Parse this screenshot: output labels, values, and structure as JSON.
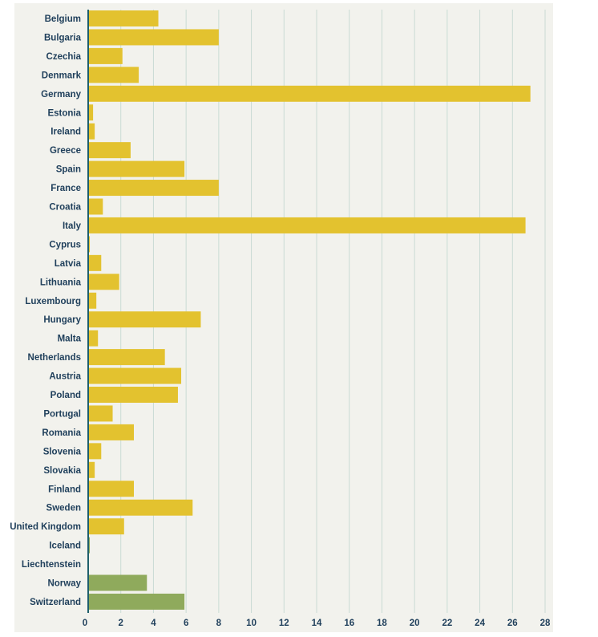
{
  "chart_data": {
    "type": "bar",
    "orientation": "horizontal",
    "title": "",
    "xlabel": "",
    "ylabel": "",
    "xlim": [
      0,
      28
    ],
    "x_ticks": [
      0,
      2,
      4,
      6,
      8,
      10,
      12,
      14,
      16,
      18,
      20,
      22,
      24,
      26,
      28
    ],
    "grid": "vertical",
    "colors": {
      "eu": "#e3c22f",
      "efta": "#8faa5c",
      "background": "#f2f2ed",
      "grid": "#c9dbd4",
      "axis": "#1f5f6b",
      "label": "#1f3f5b"
    },
    "categories": [
      "Belgium",
      "Bulgaria",
      "Czechia",
      "Denmark",
      "Germany",
      "Estonia",
      "Ireland",
      "Greece",
      "Spain",
      "France",
      "Croatia",
      "Italy",
      "Cyprus",
      "Latvia",
      "Lithuania",
      "Luxembourg",
      "Hungary",
      "Malta",
      "Netherlands",
      "Austria",
      "Poland",
      "Portugal",
      "Romania",
      "Slovenia",
      "Slovakia",
      "Finland",
      "Sweden",
      "United Kingdom",
      "Iceland",
      "Liechtenstein",
      "Norway",
      "Switzerland"
    ],
    "values": [
      4.3,
      8.0,
      2.1,
      3.1,
      27.1,
      0.3,
      0.4,
      2.6,
      5.9,
      8.0,
      0.9,
      26.8,
      0.1,
      0.8,
      1.9,
      0.5,
      6.9,
      0.6,
      4.7,
      5.7,
      5.5,
      1.5,
      2.8,
      0.8,
      0.4,
      2.8,
      6.4,
      2.2,
      0.1,
      0.0,
      3.6,
      5.9
    ],
    "bar_groups": [
      "eu",
      "eu",
      "eu",
      "eu",
      "eu",
      "eu",
      "eu",
      "eu",
      "eu",
      "eu",
      "eu",
      "eu",
      "eu",
      "eu",
      "eu",
      "eu",
      "eu",
      "eu",
      "eu",
      "eu",
      "eu",
      "eu",
      "eu",
      "eu",
      "eu",
      "eu",
      "eu",
      "eu",
      "efta",
      "efta",
      "efta",
      "efta"
    ]
  }
}
